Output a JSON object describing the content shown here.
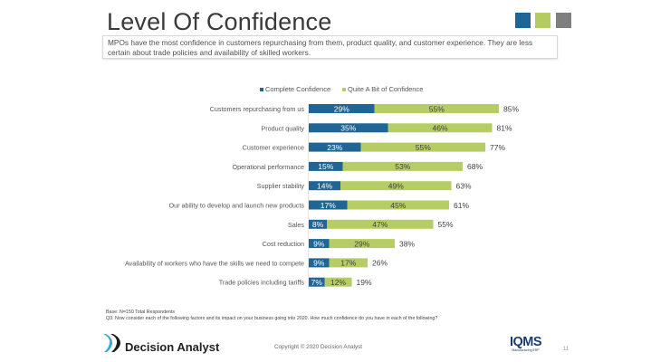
{
  "header": {
    "title": "Level Of Confidence",
    "subtitle": "MPOs have the most confidence in customers repurchasing from them, product quality, and customer experience. They are less certain about trade policies and availability of skilled workers.",
    "accent_squares": [
      "#1f6596",
      "#b3cc5f",
      "#7f7f7f"
    ]
  },
  "colors": {
    "complete": "#1f6596",
    "quite": "#b5cd64"
  },
  "chart_data": {
    "type": "bar",
    "orientation": "horizontal",
    "stacked": true,
    "title": "",
    "xlabel": "",
    "ylabel": "",
    "xlim": [
      0,
      100
    ],
    "grid": false,
    "legend_position": "top",
    "categories": [
      "Customers repurchasing from us",
      "Product quality",
      "Customer experience",
      "Operational performance",
      "Supplier stability",
      "Our ability to develop and launch new products",
      "Sales",
      "Cost reduction",
      "Availability of workers who have the skills we need to compete",
      "Trade policies including tariffs"
    ],
    "series": [
      {
        "name": "Complete Confidence",
        "values": [
          29,
          35,
          23,
          15,
          14,
          17,
          8,
          9,
          9,
          7
        ]
      },
      {
        "name": "Quite A Bit of Confidence",
        "values": [
          55,
          46,
          55,
          53,
          49,
          45,
          47,
          29,
          17,
          12
        ]
      }
    ],
    "totals": [
      85,
      81,
      77,
      68,
      63,
      61,
      55,
      38,
      26,
      19
    ],
    "value_suffix": "%"
  },
  "footer": {
    "base": "Base: N=150 Total Respondents",
    "question": "Q3. Now consider each of the following factors and its impact on your business going into 2020. How much confidence do you have in each of the following?",
    "copyright": "Copyright © 2020 Decision Analyst",
    "logo_left": "Decision Analyst",
    "logo_right": "IQMS",
    "logo_right_tag": "Manufacturing ERP",
    "page_number": "11"
  }
}
